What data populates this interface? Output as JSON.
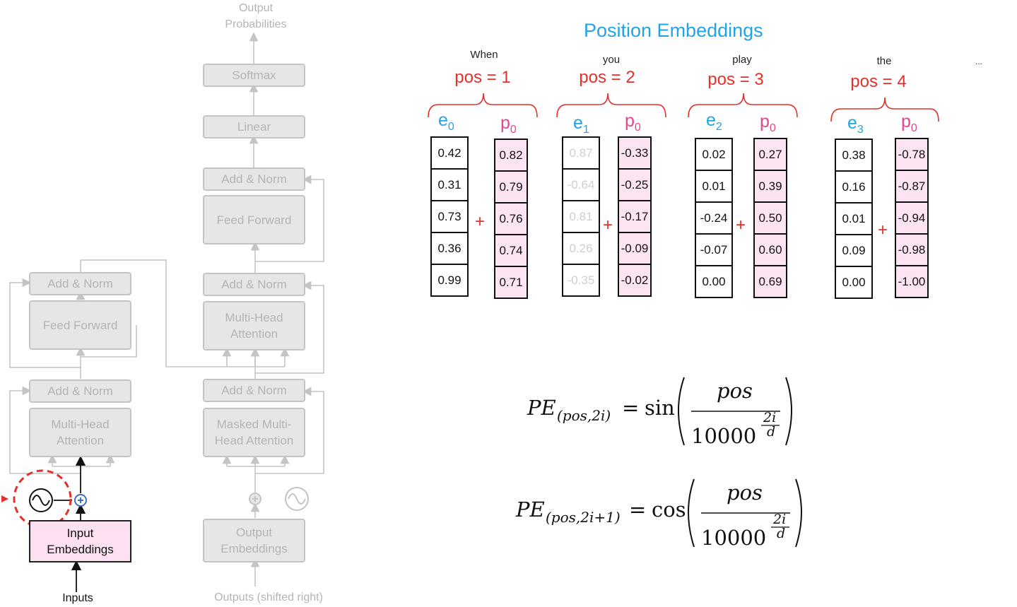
{
  "transformer": {
    "output_probabilities": "Output\nProbabilities",
    "softmax": "Softmax",
    "linear": "Linear",
    "decoder_add_norm_top": "Add & Norm",
    "decoder_feed_forward": "Feed Forward",
    "decoder_add_norm_mid": "Add & Norm",
    "decoder_mha": "Multi-Head\nAttention",
    "decoder_add_norm_low": "Add & Norm",
    "decoder_masked_mha": "Masked Multi-\nHead Attention",
    "output_embeddings": "Output\nEmbeddings",
    "outputs_label": "Outputs (shifted right)",
    "encoder_add_norm_top": "Add & Norm",
    "encoder_feed_forward": "Feed Forward",
    "encoder_add_norm_low": "Add & Norm",
    "encoder_mha": "Multi-Head\nAttention",
    "input_embeddings": "Input\nEmbeddings",
    "inputs_label": "Inputs",
    "highlight_color": "#e5302a"
  },
  "position_embeddings": {
    "title": "Position Embeddings",
    "ellipsis": "...",
    "plus": "+",
    "groups": [
      {
        "word": "When",
        "pos": "pos = 1",
        "e_sub": "0",
        "p_sub": "0",
        "e": [
          "0.42",
          "0.31",
          "0.73",
          "0.36",
          "0.99"
        ],
        "p": [
          "0.82",
          "0.79",
          "0.76",
          "0.74",
          "0.71"
        ],
        "faded": false
      },
      {
        "word": "you",
        "pos": "pos = 2",
        "e_sub": "1",
        "p_sub": "0",
        "e": [
          "0.87",
          "-0.64",
          "0.81",
          "0.26",
          "-0.35"
        ],
        "p": [
          "-0.33",
          "-0.25",
          "-0.17",
          "-0.09",
          "-0.02"
        ],
        "faded": true
      },
      {
        "word": "play",
        "pos": "pos = 3",
        "e_sub": "2",
        "p_sub": "0",
        "e": [
          "0.02",
          "0.01",
          "-0.24",
          "-0.07",
          "0.00"
        ],
        "p": [
          "0.27",
          "0.39",
          "0.50",
          "0.60",
          "0.69"
        ],
        "faded": false
      },
      {
        "word": "the",
        "pos": "pos = 4",
        "e_sub": "3",
        "p_sub": "0",
        "e": [
          "0.38",
          "0.16",
          "0.01",
          "0.09",
          "0.00"
        ],
        "p": [
          "-0.78",
          "-0.87",
          "-0.94",
          "-0.98",
          "-1.00"
        ],
        "faded": false
      }
    ]
  },
  "formulas": {
    "pe": "PE",
    "sub_even": "(pos,2i)",
    "sub_odd": "(pos,2i+1)",
    "eq": "=",
    "sin": "sin",
    "cos": "cos",
    "numerator": "pos",
    "base": "10000",
    "exp_num": "2i",
    "exp_den": "d"
  },
  "colors": {
    "e_blue": "#22a3e6",
    "p_pink": "#e8438f",
    "pos_red": "#e5302a",
    "p_cell_bg": "#fce4f3",
    "faded_block": "#e6e6e6"
  }
}
